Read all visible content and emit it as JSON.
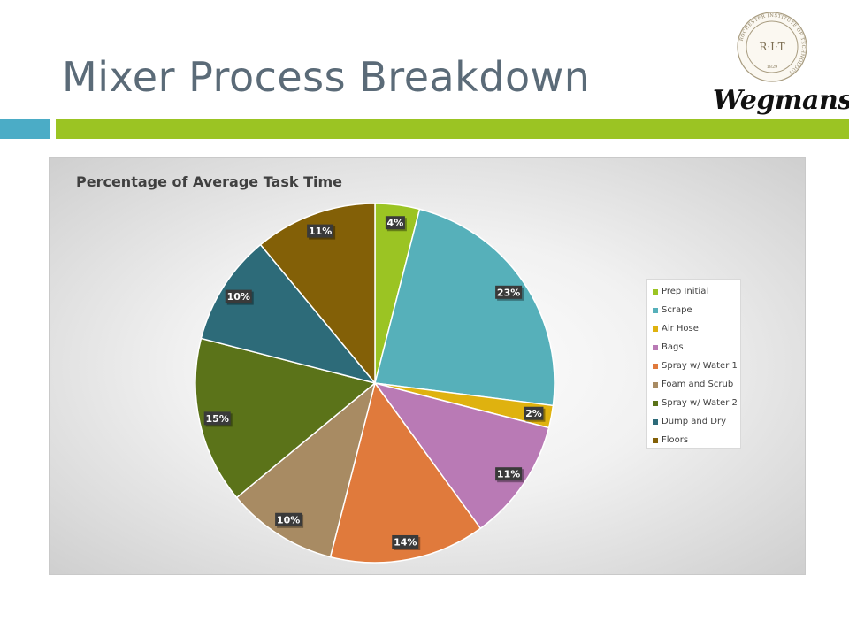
{
  "slide": {
    "title": "Mixer Process Breakdown"
  },
  "logos": {
    "rit_seal_text": "R·I·T",
    "rit_seal_ring_text": "ROCHESTER INSTITUTE OF TECHNOLOGY",
    "rit_seal_year": "1829",
    "wegmans_text": "Wegmans"
  },
  "colors": {
    "title": "#5b6b78",
    "accent_teal": "#4bacc6",
    "accent_green": "#9bc423"
  },
  "chart_data": {
    "type": "pie",
    "title": "Percentage of Average Task Time",
    "legend_position": "right",
    "categories": [
      "Prep Initial",
      "Scrape",
      "Air Hose",
      "Bags",
      "Spray w/ Water 1",
      "Foam and Scrub",
      "Spray w/ Water 2",
      "Dump and Dry",
      "Floors"
    ],
    "values": [
      4,
      23,
      2,
      11,
      14,
      10,
      15,
      10,
      11
    ],
    "labels": [
      "4%",
      "23%",
      "2%",
      "11%",
      "14%",
      "10%",
      "15%",
      "10%",
      "11%"
    ],
    "colors": [
      "#9bc423",
      "#56b0ba",
      "#dfb20f",
      "#b97ab5",
      "#e07a3c",
      "#a88b63",
      "#5b7319",
      "#2d6b79",
      "#836007"
    ]
  }
}
